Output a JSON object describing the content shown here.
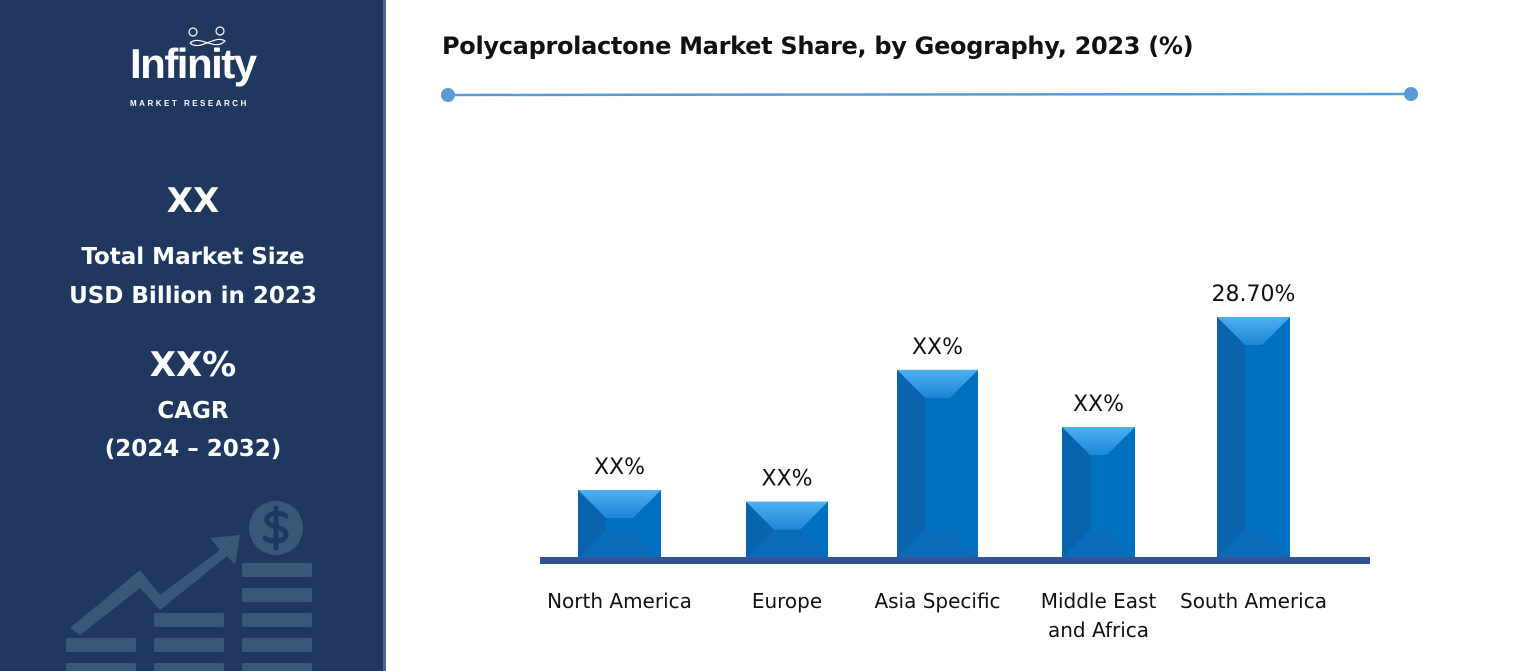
{
  "sidebar": {
    "logo_text": "Infinity",
    "logo_subtext": "MARKET RESEARCH",
    "market_size_value": "XX",
    "market_size_label_1": "Total Market Size",
    "market_size_label_2": "USD Billion in 2023",
    "cagr_value": "XX%",
    "cagr_label": "CAGR",
    "cagr_period": "(2024 – 2032)"
  },
  "chart_data": {
    "type": "bar",
    "title": "Polycaprolactone Market Share, by Geography, 2023 (%)",
    "categories": [
      "North America",
      "Europe",
      "Asia Specific",
      "Middle East and Africa",
      "South America"
    ],
    "category_lines": [
      [
        "North America"
      ],
      [
        "Europe"
      ],
      [
        "Asia Specific"
      ],
      [
        "Middle East",
        "and Africa"
      ],
      [
        "South America"
      ]
    ],
    "values": [
      8.1,
      6.7,
      22.4,
      15.6,
      28.7
    ],
    "data_labels": [
      "XX%",
      "XX%",
      "XX%",
      "XX%",
      "28.70%"
    ],
    "ylim": [
      0,
      30
    ],
    "grid": false,
    "colors": {
      "bar": "#0070c0",
      "bar_light": "#3fa6ec",
      "axis": "#2f5597",
      "accent_line": "#5b9bd5"
    }
  }
}
